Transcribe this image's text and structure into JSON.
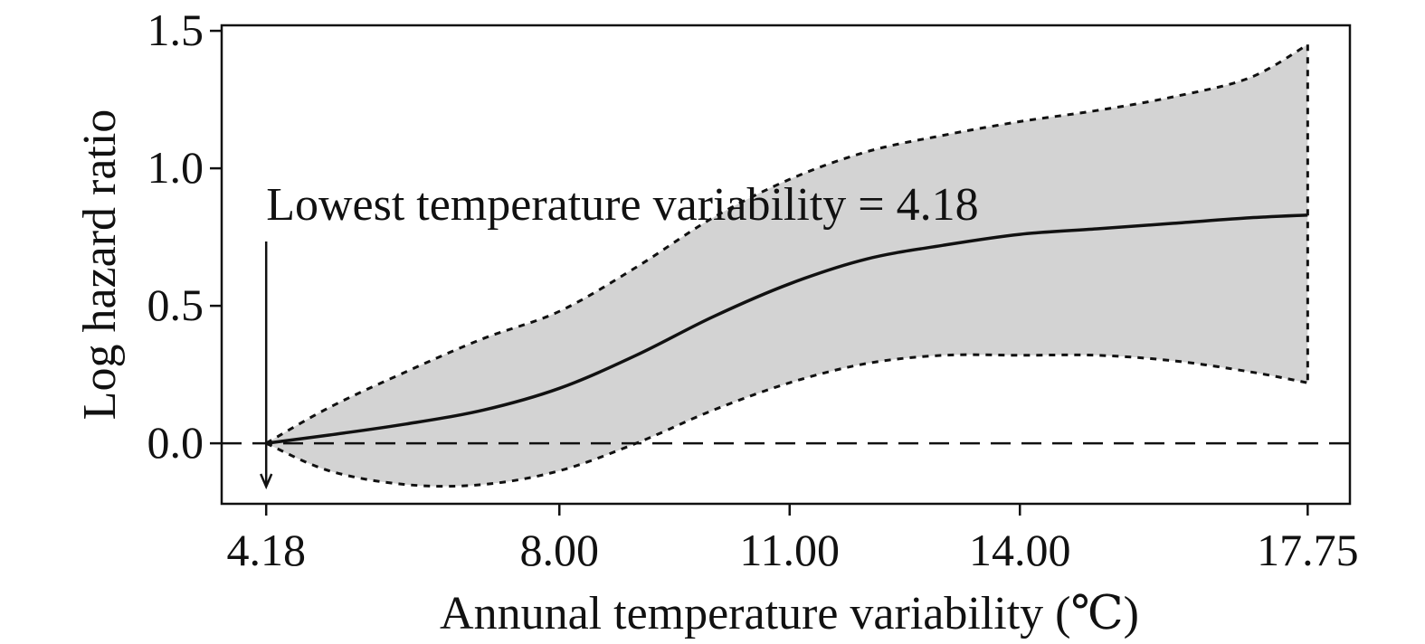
{
  "chart_data": {
    "type": "line",
    "xlabel": "Annunal temperature variability (℃)",
    "ylabel": "Log hazard ratio",
    "xlim": [
      3.6,
      18.3
    ],
    "ylim": [
      -0.22,
      1.52
    ],
    "x_ticks": [
      {
        "value": 4.18,
        "label": "4.18"
      },
      {
        "value": 8.0,
        "label": "8.00"
      },
      {
        "value": 11.0,
        "label": "11.00"
      },
      {
        "value": 14.0,
        "label": "14.00"
      },
      {
        "value": 17.75,
        "label": "17.75"
      }
    ],
    "y_ticks": [
      {
        "value": 0.0,
        "label": "0.0"
      },
      {
        "value": 0.5,
        "label": "0.5"
      },
      {
        "value": 1.0,
        "label": "1.0"
      },
      {
        "value": 1.5,
        "label": "1.5"
      }
    ],
    "reference_line": {
      "y": 0.0,
      "style": "dashed"
    },
    "series": [
      {
        "role": "estimate",
        "style": "solid",
        "x": [
          4.18,
          5.0,
          6.0,
          7.0,
          8.0,
          9.0,
          10.0,
          11.0,
          12.0,
          13.0,
          14.0,
          15.0,
          16.0,
          17.0,
          17.75
        ],
        "y": [
          0.0,
          0.03,
          0.07,
          0.12,
          0.2,
          0.32,
          0.46,
          0.58,
          0.67,
          0.72,
          0.76,
          0.78,
          0.8,
          0.82,
          0.83
        ]
      },
      {
        "role": "upper-ci",
        "style": "dotted",
        "x": [
          4.18,
          5.0,
          6.0,
          7.0,
          8.0,
          9.0,
          10.0,
          11.0,
          12.0,
          13.0,
          14.0,
          15.0,
          16.0,
          17.0,
          17.75
        ],
        "y": [
          0.0,
          0.13,
          0.26,
          0.38,
          0.48,
          0.64,
          0.82,
          0.96,
          1.06,
          1.12,
          1.17,
          1.21,
          1.26,
          1.33,
          1.45
        ]
      },
      {
        "role": "lower-ci",
        "style": "dotted",
        "x": [
          4.18,
          5.0,
          6.0,
          7.0,
          8.0,
          9.0,
          10.0,
          11.0,
          12.0,
          13.0,
          14.0,
          15.0,
          16.0,
          17.0,
          17.75
        ],
        "y": [
          0.0,
          -0.1,
          -0.15,
          -0.15,
          -0.1,
          0.0,
          0.12,
          0.22,
          0.29,
          0.32,
          0.32,
          0.32,
          0.3,
          0.26,
          0.22
        ]
      }
    ],
    "annotation": {
      "text": "Lowest temperature variability = 4.18",
      "x": 4.18
    },
    "band_color": "#d3d3d3",
    "line_color": "#111111"
  }
}
